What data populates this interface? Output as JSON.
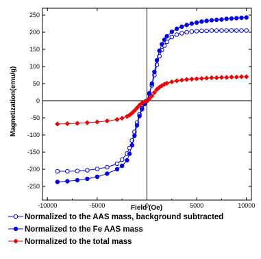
{
  "chart_data": {
    "type": "line",
    "title": "",
    "xlabel": "Field (Oe)",
    "ylabel": "Magnetization(emu/g)",
    "xlim": [
      -10500,
      10500
    ],
    "ylim": [
      -290,
      270
    ],
    "xticks": [
      -10000,
      -5000,
      0,
      5000,
      10000
    ],
    "xtick_labels": [
      "-10000",
      "-5000",
      "0",
      "5000",
      "10000"
    ],
    "yticks": [
      -250,
      -200,
      -150,
      -100,
      -50,
      0,
      50,
      100,
      150,
      200,
      250
    ],
    "ytick_labels": [
      "-250",
      "-200",
      "-150",
      "-100",
      "-50",
      "0",
      "50",
      "100",
      "150",
      "200",
      "250"
    ],
    "grid": false,
    "legend_position": "below",
    "series": [
      {
        "name": "Normalized to the AAS mass, background subtracted",
        "color": "#0000ee",
        "marker": "open-circle",
        "line": "solid",
        "x": [
          -9000,
          -8000,
          -7000,
          -6000,
          -5000,
          -4000,
          -3000,
          -2500,
          -2000,
          -1750,
          -1500,
          -1250,
          -1000,
          -750,
          -500,
          -250,
          0,
          250,
          500,
          750,
          1000,
          1250,
          1500,
          1750,
          2000,
          2500,
          3000,
          3500,
          4000,
          4500,
          5000,
          5500,
          6000,
          6500,
          7000,
          7500,
          8000,
          8500,
          9000,
          9500,
          10000
        ],
        "y": [
          -206,
          -206,
          -205,
          -203,
          -199,
          -194,
          -184,
          -172,
          -154,
          -138,
          -116,
          -91,
          -64,
          -40,
          -22,
          -9,
          0,
          20,
          45,
          75,
          105,
          130,
          148,
          161,
          172,
          186,
          193,
          197,
          200,
          202,
          203,
          204,
          204,
          205,
          205,
          205,
          205,
          205,
          205,
          205,
          205
        ]
      },
      {
        "name": "Normalized to the Fe AAS mass",
        "color": "#0000ee",
        "marker": "filled-circle",
        "line": "solid",
        "x": [
          -9000,
          -8000,
          -7000,
          -6000,
          -5000,
          -4000,
          -3000,
          -2500,
          -2000,
          -1750,
          -1500,
          -1250,
          -1000,
          -750,
          -500,
          -250,
          0,
          250,
          500,
          750,
          1000,
          1250,
          1500,
          1750,
          2000,
          2500,
          3000,
          3500,
          4000,
          4500,
          5000,
          5500,
          6000,
          6500,
          7000,
          7500,
          8000,
          8500,
          9000,
          9500,
          10000
        ],
        "y": [
          -237,
          -235,
          -232,
          -228,
          -222,
          -213,
          -200,
          -190,
          -174,
          -155,
          -130,
          -102,
          -72,
          -45,
          -25,
          -10,
          0,
          22,
          50,
          84,
          118,
          146,
          165,
          178,
          188,
          201,
          210,
          216,
          221,
          225,
          228,
          231,
          233,
          235,
          236,
          237,
          239,
          240,
          241,
          242,
          243
        ]
      },
      {
        "name": "Normalized to the total mass",
        "color": "#ee0000",
        "marker": "filled-diamond",
        "line": "solid",
        "x": [
          -9000,
          -8000,
          -7000,
          -6000,
          -5000,
          -4000,
          -3000,
          -2500,
          -2000,
          -1750,
          -1500,
          -1250,
          -1000,
          -750,
          -500,
          -250,
          0,
          250,
          500,
          750,
          1000,
          1250,
          1500,
          1750,
          2000,
          2500,
          3000,
          3500,
          4000,
          4500,
          5000,
          5500,
          6000,
          6500,
          7000,
          7500,
          8000,
          8500,
          9000,
          9500,
          10000
        ],
        "y": [
          -68,
          -67,
          -66,
          -64,
          -62,
          -59,
          -55,
          -51,
          -46,
          -42,
          -36,
          -29,
          -21,
          -13,
          -7,
          -3,
          0,
          6,
          14,
          24,
          33,
          39,
          44,
          48,
          51,
          55,
          58,
          60,
          62,
          63,
          64,
          65,
          66,
          67,
          67,
          68,
          68,
          69,
          69,
          70,
          70
        ]
      }
    ]
  }
}
